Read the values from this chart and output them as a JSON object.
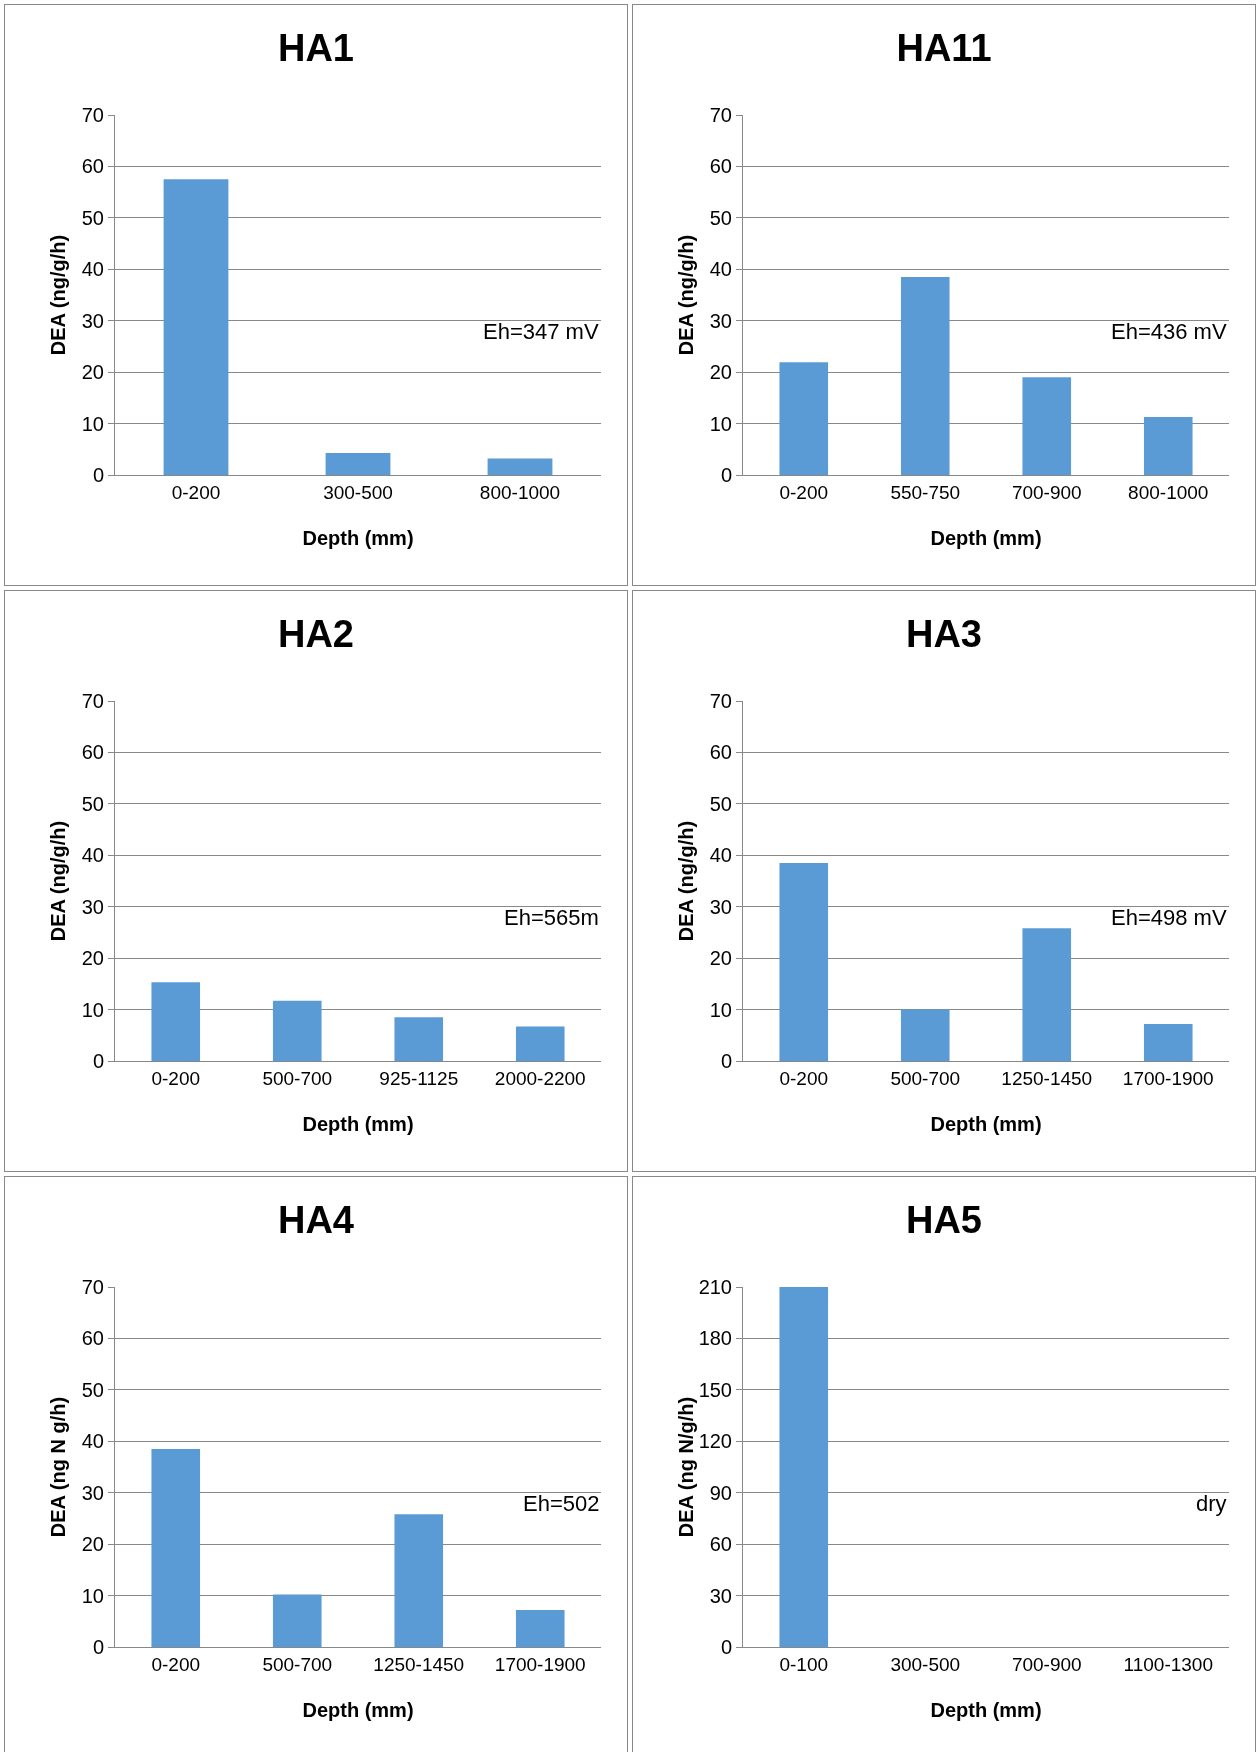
{
  "chart_data": [
    {
      "type": "bar",
      "title": "HA1",
      "xlabel": "Depth (mm)",
      "ylabel": "DEA (ng/g/h)",
      "categories": [
        "0-200",
        "300-500",
        "800-1000"
      ],
      "values": [
        57.5,
        4.3,
        3.2
      ],
      "color": "#5b9bd5",
      "ylim": [
        0,
        70
      ],
      "yticks": [
        0,
        10,
        20,
        30,
        40,
        50,
        60,
        70
      ],
      "grid": "y",
      "annotations": [
        "Eh=347 mV"
      ]
    },
    {
      "type": "bar",
      "title": "HA11",
      "xlabel": "Depth (mm)",
      "ylabel": "DEA (ng/g/h)",
      "categories": [
        "0-200",
        "550-750",
        "700-900",
        "800-1000"
      ],
      "values": [
        21.9,
        38.5,
        19,
        11.3
      ],
      "color": "#5b9bd5",
      "ylim": [
        0,
        70
      ],
      "yticks": [
        0,
        10,
        20,
        30,
        40,
        50,
        60,
        70
      ],
      "grid": "y",
      "annotations": [
        "Eh=436 mV"
      ]
    },
    {
      "type": "bar",
      "title": "HA2",
      "xlabel": "Depth (mm)",
      "ylabel": "DEA (ng/g/h)",
      "categories": [
        "0-200",
        "500-700",
        "925-1125",
        "2000-2200"
      ],
      "values": [
        15.3,
        11.7,
        8.5,
        6.7
      ],
      "color": "#5b9bd5",
      "ylim": [
        0,
        70
      ],
      "yticks": [
        0,
        10,
        20,
        30,
        40,
        50,
        60,
        70
      ],
      "grid": "y",
      "annotations": [
        "Eh=565m"
      ]
    },
    {
      "type": "bar",
      "title": "HA3",
      "xlabel": "Depth (mm)",
      "ylabel": "DEA (ng/g/h)",
      "categories": [
        "0-200",
        "500-700",
        "1250-1450",
        "1700-1900"
      ],
      "values": [
        38.5,
        10,
        25.8,
        7.2
      ],
      "color": "#5b9bd5",
      "ylim": [
        0,
        70
      ],
      "yticks": [
        0,
        10,
        20,
        30,
        40,
        50,
        60,
        70
      ],
      "grid": "y",
      "annotations": [
        "Eh=498 mV"
      ]
    },
    {
      "type": "bar",
      "title": "HA4",
      "xlabel": "Depth (mm)",
      "ylabel": "DEA (ng N g/h)",
      "categories": [
        "0-200",
        "500-700",
        "1250-1450",
        "1700-1900"
      ],
      "values": [
        38.5,
        10.2,
        25.8,
        7.2
      ],
      "color": "#5b9bd5",
      "ylim": [
        0,
        70
      ],
      "yticks": [
        0,
        10,
        20,
        30,
        40,
        50,
        60,
        70
      ],
      "grid": "y",
      "annotations": [
        "Eh=502"
      ]
    },
    {
      "type": "bar",
      "title": "HA5",
      "xlabel": "Depth (mm)",
      "ylabel": "DEA (ng N/g/h)",
      "categories": [
        "0-100",
        "300-500",
        "700-900",
        "1100-1300"
      ],
      "values": [
        210,
        0,
        0,
        0
      ],
      "color": "#5b9bd5",
      "ylim": [
        0,
        210
      ],
      "yticks": [
        0,
        30,
        60,
        90,
        120,
        150,
        180,
        210
      ],
      "grid": "y",
      "annotations": [
        "dry"
      ]
    }
  ]
}
